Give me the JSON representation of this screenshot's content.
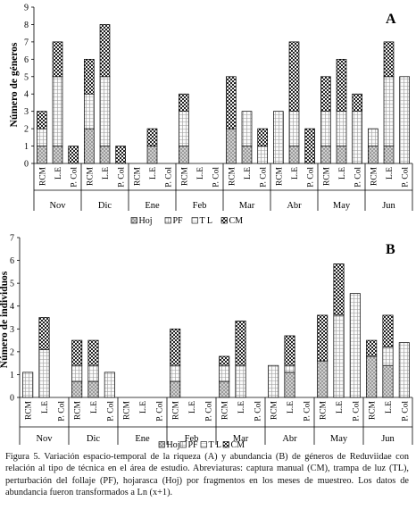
{
  "chart_data": [
    {
      "type": "bar",
      "panel_label": "A",
      "ylabel": "Número de géneros",
      "ylim": [
        0,
        9
      ],
      "yticks": [
        0,
        1,
        2,
        3,
        4,
        5,
        6,
        7,
        8,
        9
      ],
      "months": [
        "Nov",
        "Dic",
        "Ene",
        "Feb",
        "Mar",
        "Abr",
        "May",
        "Jun"
      ],
      "techniques": [
        "RCM",
        "L.E",
        "P. Col"
      ],
      "legend": [
        "Hoj",
        "PF",
        "T L",
        "CM"
      ],
      "legend_position": "bottom",
      "grid": false,
      "values": {
        "Hoj": [
          [
            1,
            1,
            0
          ],
          [
            2,
            1,
            0
          ],
          [
            0,
            1,
            0
          ],
          [
            1,
            0,
            0
          ],
          [
            2,
            1,
            0
          ],
          [
            0,
            1,
            0
          ],
          [
            1,
            1,
            0
          ],
          [
            1,
            1,
            0
          ]
        ],
        "PF": [
          [
            1,
            4,
            0
          ],
          [
            2,
            4,
            0
          ],
          [
            0,
            0,
            0
          ],
          [
            2,
            0,
            0
          ],
          [
            0,
            2,
            1
          ],
          [
            3,
            2,
            0
          ],
          [
            2,
            2,
            3
          ],
          [
            1,
            4,
            5
          ]
        ],
        "TL": [
          [
            0,
            0,
            0
          ],
          [
            0,
            0,
            0
          ],
          [
            0,
            0,
            0
          ],
          [
            0,
            0,
            0
          ],
          [
            0,
            0,
            0
          ],
          [
            0,
            0,
            0
          ],
          [
            0,
            0,
            0
          ],
          [
            0,
            0,
            0
          ]
        ],
        "CM": [
          [
            1,
            2,
            1
          ],
          [
            2,
            3,
            1
          ],
          [
            0,
            1,
            0
          ],
          [
            1,
            0,
            0
          ],
          [
            3,
            0,
            1
          ],
          [
            0,
            4,
            2
          ],
          [
            2,
            3,
            1
          ],
          [
            0,
            2,
            0
          ]
        ]
      }
    },
    {
      "type": "bar",
      "panel_label": "B",
      "ylabel": "Número de individuos",
      "ylim": [
        0,
        7
      ],
      "yticks": [
        0,
        1,
        2,
        3,
        4,
        5,
        6,
        7
      ],
      "months": [
        "Nov",
        "Dic",
        "Ene",
        "Feb",
        "Mar",
        "Abr",
        "May",
        "Jun"
      ],
      "techniques": [
        "RCM",
        "L.E",
        "P. Col"
      ],
      "legend": [
        "Hoj",
        "PF",
        "T L",
        "CM"
      ],
      "legend_position": "bottom",
      "grid": false,
      "values": {
        "Hoj": [
          [
            0,
            0,
            0
          ],
          [
            0.7,
            0.7,
            0
          ],
          [
            0,
            0,
            0
          ],
          [
            0.7,
            0,
            0
          ],
          [
            0.7,
            0,
            0
          ],
          [
            0,
            1.1,
            0
          ],
          [
            1.6,
            0,
            0
          ],
          [
            1.8,
            1.4,
            0
          ]
        ],
        "PF": [
          [
            1.1,
            2.1,
            0
          ],
          [
            0.7,
            0.7,
            1.1
          ],
          [
            0,
            0,
            0
          ],
          [
            0.7,
            0,
            0
          ],
          [
            0.7,
            1.4,
            0
          ],
          [
            1.4,
            0.3,
            0
          ],
          [
            0,
            3.6,
            4.55
          ],
          [
            0,
            0.8,
            2.4
          ]
        ],
        "TL": [
          [
            0,
            0,
            0
          ],
          [
            0,
            0,
            0
          ],
          [
            0,
            0,
            0
          ],
          [
            0,
            0,
            0
          ],
          [
            0,
            0,
            0
          ],
          [
            0,
            0,
            0
          ],
          [
            0,
            0,
            0
          ],
          [
            0,
            0,
            0
          ]
        ],
        "CM": [
          [
            0,
            1.4,
            0
          ],
          [
            1.1,
            1.1,
            0
          ],
          [
            0,
            0,
            0
          ],
          [
            1.6,
            0,
            0
          ],
          [
            0.4,
            1.95,
            0
          ],
          [
            0,
            1.3,
            0
          ],
          [
            2.0,
            2.25,
            0
          ],
          [
            0.7,
            1.4,
            0
          ]
        ]
      }
    }
  ],
  "caption": {
    "label": "Figura 5.",
    "text": "Variación espacio-temporal de la riqueza (A) y abundancia (B) de géneros de Reduviidae con relación al tipo de técnica en el área de estudio. Abreviaturas: captura manual (CM), trampa de luz (TL), perturbación del follaje (PF), hojarasca (Hoj) por fragmentos en los meses de muestreo. Los datos de abundancia fueron transformados a Ln (x+1)."
  }
}
